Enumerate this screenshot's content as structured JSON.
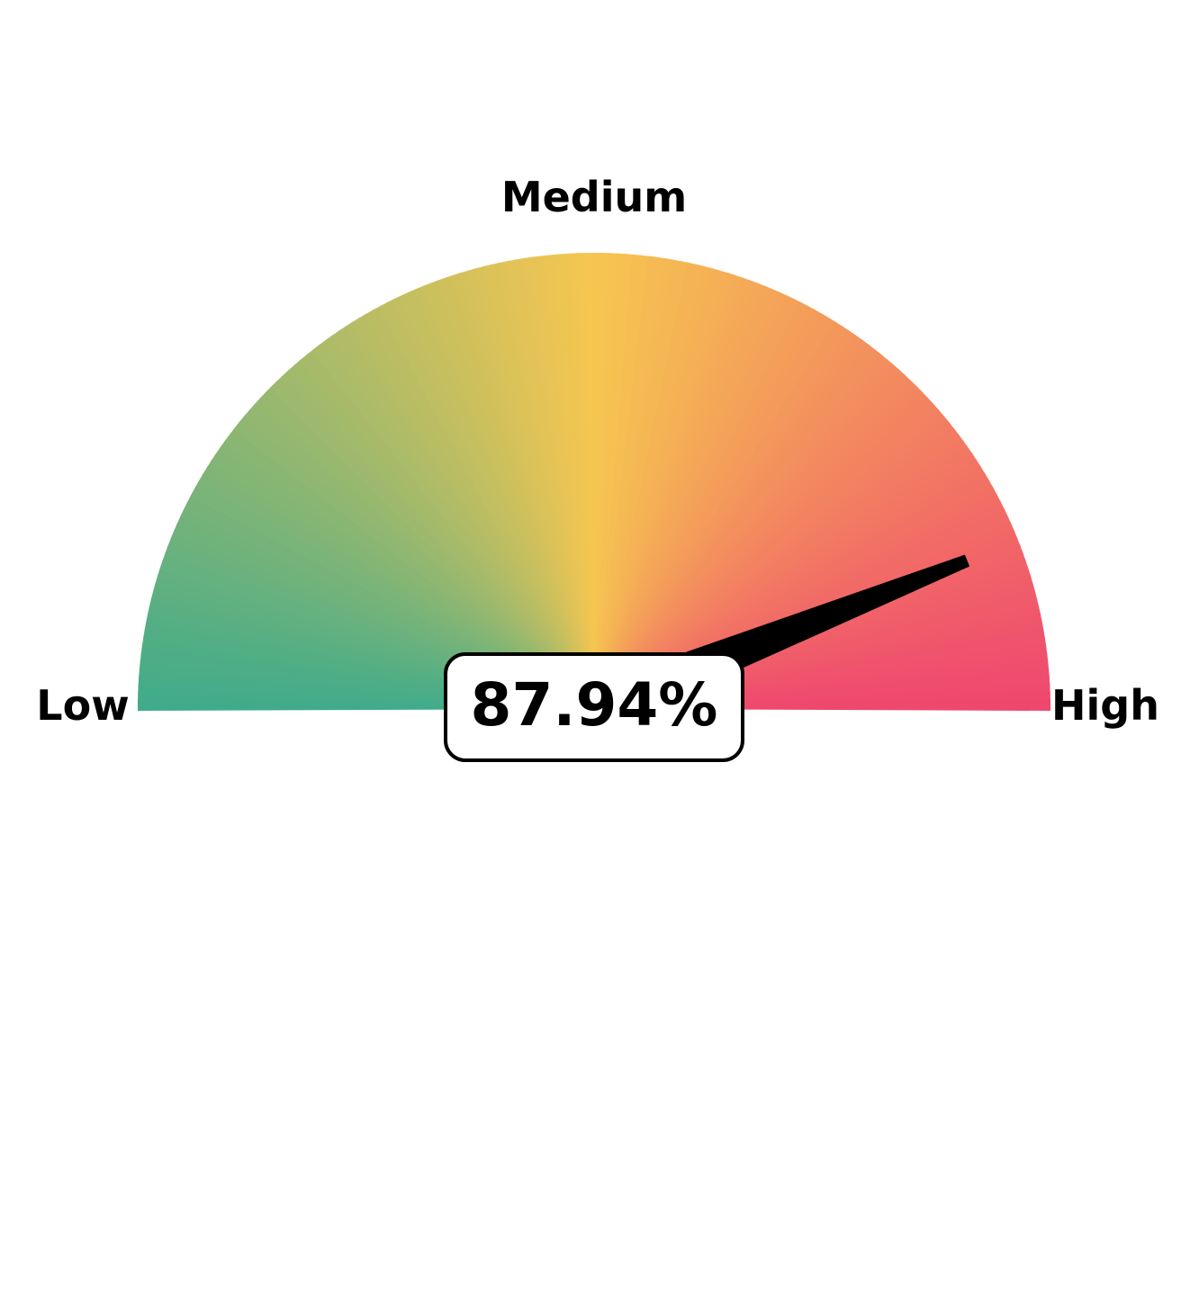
{
  "chart_data": {
    "type": "gauge",
    "value": 87.94,
    "value_label": "87.94%",
    "range": [
      0,
      100
    ],
    "labels": {
      "low": "Low",
      "medium": "Medium",
      "high": "High"
    },
    "colors": {
      "low": "#3fab8b",
      "medium": "#f6c650",
      "high": "#ef476f",
      "needle": "#000000"
    }
  }
}
